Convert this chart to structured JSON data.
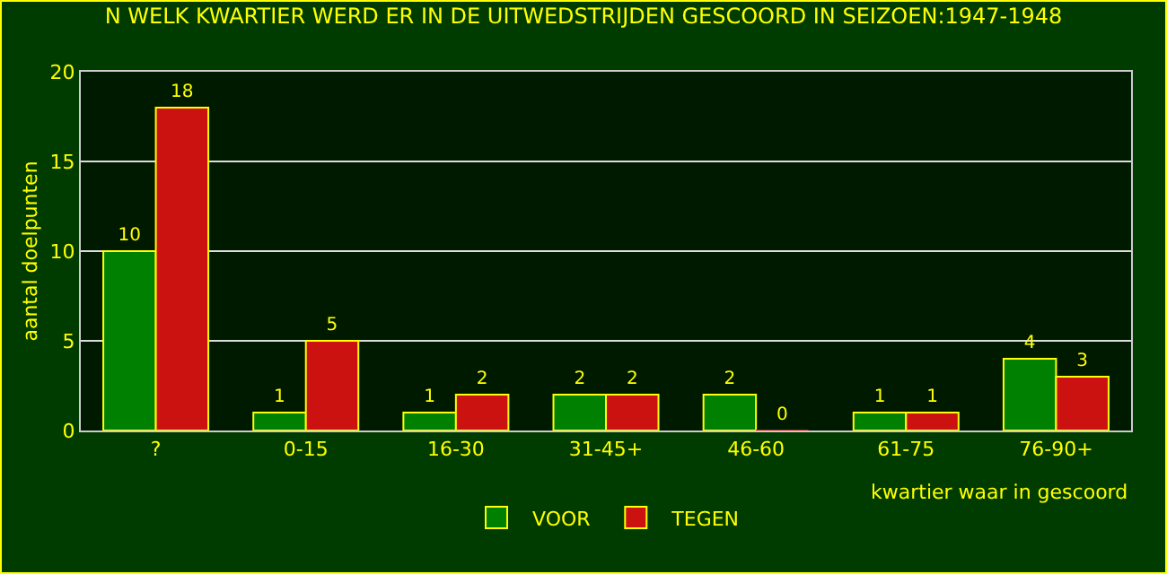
{
  "chart_data": {
    "type": "bar",
    "title": "N WELK KWARTIER WERD ER IN DE UITWEDSTRIJDEN GESCOORD IN SEIZOEN:1947-1948",
    "xlabel": "kwartier waar in gescoord",
    "ylabel": "aantal doelpunten",
    "categories": [
      "?",
      "0-15",
      "16-30",
      "31-45+",
      "46-60",
      "61-75",
      "76-90+"
    ],
    "series": [
      {
        "name": "VOOR",
        "color": "#008000",
        "values": [
          10,
          1,
          1,
          2,
          2,
          1,
          4
        ]
      },
      {
        "name": "TEGEN",
        "color": "#cc1111",
        "values": [
          18,
          5,
          2,
          2,
          0,
          1,
          3
        ]
      }
    ],
    "ylim": [
      0,
      20
    ],
    "yticks": [
      0,
      5,
      10,
      15,
      20
    ],
    "grid": "y",
    "legend": "bottom",
    "data_labels": true
  }
}
